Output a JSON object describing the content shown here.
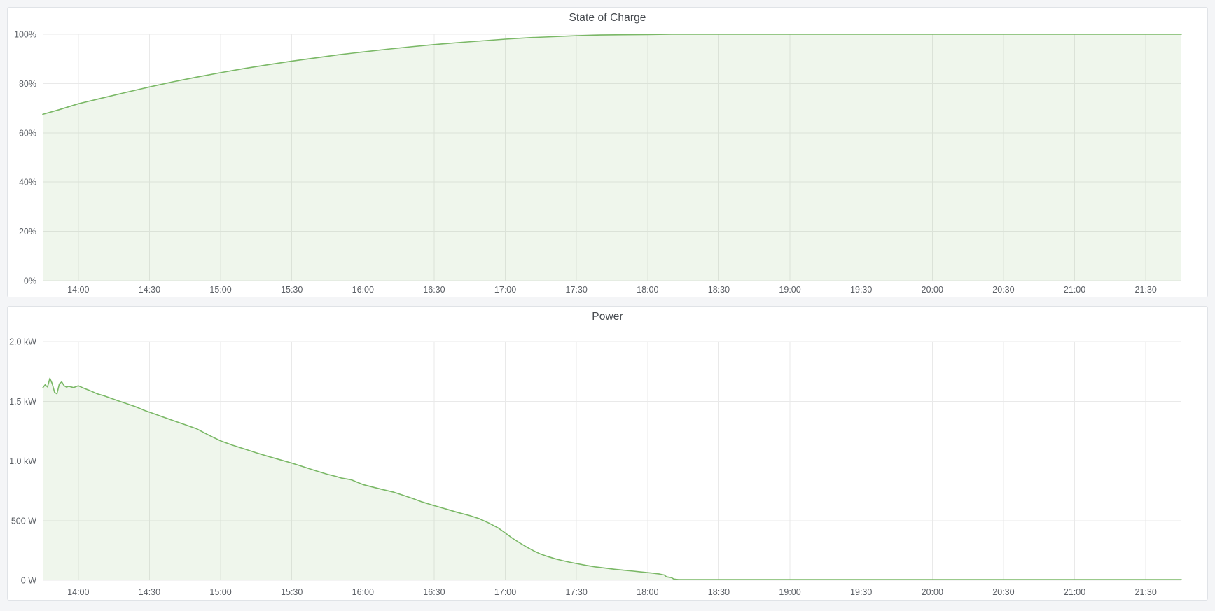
{
  "colors": {
    "page_bg": "#f4f5f7",
    "panel_bg": "#ffffff",
    "panel_border": "#e0e3e7",
    "title_text": "#45494e",
    "axis_text": "#5c6066",
    "grid": "#e9e9e9",
    "series_line": "#7ab866",
    "series_fill": "rgba(122,184,102,0.12)"
  },
  "chart_data": [
    {
      "type": "area",
      "title": "State of Charge",
      "unit": "%",
      "legend_position": "none",
      "grid": true,
      "xlim": [
        "13:45",
        "21:45"
      ],
      "ylim": [
        0,
        100
      ],
      "x_ticks": [
        "14:00",
        "14:30",
        "15:00",
        "15:30",
        "16:00",
        "16:30",
        "17:00",
        "17:30",
        "18:00",
        "18:30",
        "19:00",
        "19:30",
        "20:00",
        "20:30",
        "21:00",
        "21:30"
      ],
      "y_ticks": [
        {
          "label": "0%",
          "value": 0
        },
        {
          "label": "20%",
          "value": 20
        },
        {
          "label": "40%",
          "value": 40
        },
        {
          "label": "60%",
          "value": 60
        },
        {
          "label": "80%",
          "value": 80
        },
        {
          "label": "100%",
          "value": 100
        }
      ],
      "points": [
        [
          "13:45",
          67.5
        ],
        [
          "13:52",
          69.4
        ],
        [
          "14:00",
          71.8
        ],
        [
          "14:10",
          74.1
        ],
        [
          "14:20",
          76.4
        ],
        [
          "14:30",
          78.6
        ],
        [
          "14:40",
          80.7
        ],
        [
          "14:50",
          82.6
        ],
        [
          "15:00",
          84.4
        ],
        [
          "15:10",
          86.1
        ],
        [
          "15:20",
          87.6
        ],
        [
          "15:30",
          89.1
        ],
        [
          "15:40",
          90.4
        ],
        [
          "15:50",
          91.7
        ],
        [
          "16:00",
          92.8
        ],
        [
          "16:10",
          93.9
        ],
        [
          "16:20",
          94.9
        ],
        [
          "16:30",
          95.8
        ],
        [
          "16:40",
          96.6
        ],
        [
          "16:50",
          97.3
        ],
        [
          "17:00",
          98.0
        ],
        [
          "17:10",
          98.6
        ],
        [
          "17:20",
          99.0
        ],
        [
          "17:30",
          99.4
        ],
        [
          "17:40",
          99.7
        ],
        [
          "17:50",
          99.8
        ],
        [
          "18:00",
          99.9
        ],
        [
          "18:10",
          100
        ],
        [
          "18:30",
          100
        ],
        [
          "19:00",
          100
        ],
        [
          "19:30",
          100
        ],
        [
          "20:00",
          100
        ],
        [
          "20:30",
          100
        ],
        [
          "21:00",
          100
        ],
        [
          "21:30",
          100
        ],
        [
          "21:45",
          100
        ]
      ]
    },
    {
      "type": "area",
      "title": "Power",
      "unit": "W",
      "legend_position": "none",
      "grid": true,
      "xlim": [
        "13:45",
        "21:45"
      ],
      "ylim": [
        0,
        2000
      ],
      "x_ticks": [
        "14:00",
        "14:30",
        "15:00",
        "15:30",
        "16:00",
        "16:30",
        "17:00",
        "17:30",
        "18:00",
        "18:30",
        "19:00",
        "19:30",
        "20:00",
        "20:30",
        "21:00",
        "21:30"
      ],
      "y_ticks": [
        {
          "label": "0 W",
          "value": 0
        },
        {
          "label": "500 W",
          "value": 500
        },
        {
          "label": "1.0 kW",
          "value": 1000
        },
        {
          "label": "1.5 kW",
          "value": 1500
        },
        {
          "label": "2.0 kW",
          "value": 2000
        }
      ],
      "points": [
        [
          "13:45",
          1612
        ],
        [
          "13:46",
          1638
        ],
        [
          "13:47",
          1620
        ],
        [
          "13:48",
          1692
        ],
        [
          "13:49",
          1648
        ],
        [
          "13:50",
          1575
        ],
        [
          "13:51",
          1562
        ],
        [
          "13:52",
          1645
        ],
        [
          "13:53",
          1662
        ],
        [
          "13:54",
          1630
        ],
        [
          "13:55",
          1618
        ],
        [
          "13:56",
          1626
        ],
        [
          "13:58",
          1614
        ],
        [
          "14:00",
          1630
        ],
        [
          "14:02",
          1612
        ],
        [
          "14:05",
          1588
        ],
        [
          "14:08",
          1562
        ],
        [
          "14:11",
          1545
        ],
        [
          "14:14",
          1524
        ],
        [
          "14:17",
          1502
        ],
        [
          "14:20",
          1482
        ],
        [
          "14:24",
          1455
        ],
        [
          "14:28",
          1422
        ],
        [
          "14:32",
          1394
        ],
        [
          "14:36",
          1366
        ],
        [
          "14:40",
          1338
        ],
        [
          "14:45",
          1303
        ],
        [
          "14:50",
          1268
        ],
        [
          "14:55",
          1216
        ],
        [
          "15:00",
          1168
        ],
        [
          "15:05",
          1132
        ],
        [
          "15:10",
          1100
        ],
        [
          "15:15",
          1068
        ],
        [
          "15:20",
          1038
        ],
        [
          "15:25",
          1010
        ],
        [
          "15:30",
          982
        ],
        [
          "15:35",
          950
        ],
        [
          "15:40",
          918
        ],
        [
          "15:45",
          888
        ],
        [
          "15:49",
          868
        ],
        [
          "15:51",
          856
        ],
        [
          "15:55",
          842
        ],
        [
          "16:00",
          802
        ],
        [
          "16:05",
          776
        ],
        [
          "16:10",
          752
        ],
        [
          "16:13",
          738
        ],
        [
          "16:17",
          712
        ],
        [
          "16:21",
          685
        ],
        [
          "16:25",
          656
        ],
        [
          "16:30",
          625
        ],
        [
          "16:35",
          597
        ],
        [
          "16:40",
          568
        ],
        [
          "16:45",
          542
        ],
        [
          "16:49",
          516
        ],
        [
          "16:53",
          480
        ],
        [
          "16:57",
          438
        ],
        [
          "17:00",
          396
        ],
        [
          "17:03",
          352
        ],
        [
          "17:06",
          314
        ],
        [
          "17:09",
          278
        ],
        [
          "17:12",
          246
        ],
        [
          "17:15",
          218
        ],
        [
          "17:18",
          198
        ],
        [
          "17:21",
          180
        ],
        [
          "17:24",
          165
        ],
        [
          "17:27",
          152
        ],
        [
          "17:30",
          140
        ],
        [
          "17:34",
          125
        ],
        [
          "17:38",
          112
        ],
        [
          "17:42",
          102
        ],
        [
          "17:46",
          92
        ],
        [
          "17:50",
          84
        ],
        [
          "17:54",
          76
        ],
        [
          "17:58",
          68
        ],
        [
          "18:02",
          60
        ],
        [
          "18:05",
          52
        ],
        [
          "18:07",
          44
        ],
        [
          "18:08",
          28
        ],
        [
          "18:10",
          22
        ],
        [
          "18:11",
          10
        ],
        [
          "18:13",
          6
        ],
        [
          "18:30",
          6
        ],
        [
          "19:00",
          6
        ],
        [
          "19:30",
          6
        ],
        [
          "20:00",
          6
        ],
        [
          "20:30",
          6
        ],
        [
          "21:00",
          6
        ],
        [
          "21:30",
          6
        ],
        [
          "21:45",
          6
        ]
      ]
    }
  ]
}
